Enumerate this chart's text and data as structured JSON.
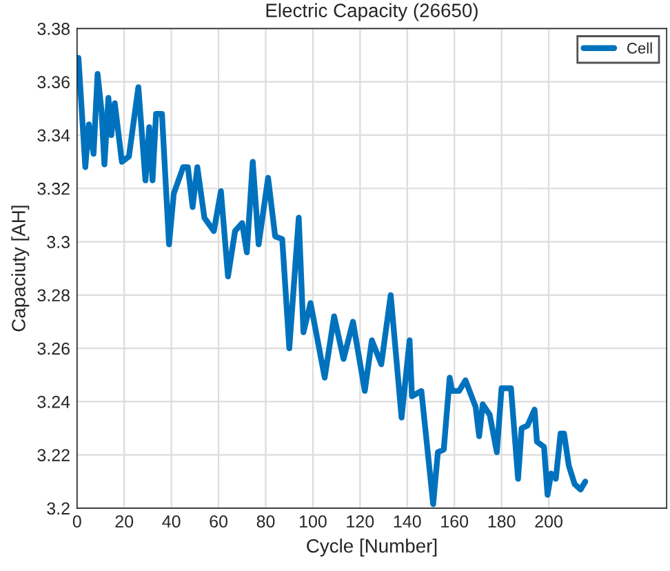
{
  "chart_data": {
    "type": "line",
    "title": "Electric Capacity (26650)",
    "xlabel": "Cycle [Number]",
    "ylabel": "Capaciuty [AH]",
    "series": [
      {
        "name": "Cell",
        "color": "#0072bd",
        "x": [
          0.6,
          3.5,
          5,
          7,
          8.7,
          10.4,
          11.6,
          13.3,
          14.5,
          16,
          19,
          22,
          26,
          29,
          30.6,
          32,
          33.5,
          36,
          39,
          41,
          45,
          47,
          49,
          51,
          54,
          58,
          61,
          64,
          67,
          70,
          72,
          74.5,
          77,
          81,
          84,
          87,
          90,
          94,
          96,
          99,
          105,
          109,
          113,
          117,
          122,
          125,
          129,
          133,
          137.6,
          141,
          142,
          146,
          151,
          153,
          155.5,
          158,
          159,
          162,
          164.7,
          169,
          170.5,
          172,
          175,
          178,
          180,
          184,
          187,
          188.5,
          191,
          194,
          195,
          198,
          199.5,
          201,
          203,
          205,
          206.5,
          208.5,
          211,
          213.5,
          215.5
        ],
        "values": [
          3.369,
          3.328,
          3.344,
          3.333,
          3.363,
          3.349,
          3.329,
          3.354,
          3.34,
          3.352,
          3.33,
          3.332,
          3.358,
          3.323,
          3.343,
          3.323,
          3.348,
          3.348,
          3.299,
          3.318,
          3.328,
          3.328,
          3.313,
          3.328,
          3.309,
          3.304,
          3.319,
          3.287,
          3.304,
          3.307,
          3.296,
          3.33,
          3.299,
          3.324,
          3.302,
          3.301,
          3.26,
          3.309,
          3.266,
          3.277,
          3.249,
          3.272,
          3.256,
          3.27,
          3.244,
          3.263,
          3.254,
          3.28,
          3.234,
          3.263,
          3.242,
          3.244,
          3.2015,
          3.221,
          3.222,
          3.249,
          3.244,
          3.244,
          3.248,
          3.238,
          3.227,
          3.239,
          3.235,
          3.221,
          3.245,
          3.245,
          3.211,
          3.23,
          3.231,
          3.237,
          3.225,
          3.223,
          3.205,
          3.213,
          3.211,
          3.228,
          3.228,
          3.216,
          3.209,
          3.207,
          3.21
        ]
      }
    ],
    "xlim": [
      0,
      250
    ],
    "xticks": [
      0,
      20,
      40,
      60,
      80,
      100,
      120,
      140,
      160,
      180,
      200
    ],
    "ylim": [
      3.2,
      3.38
    ],
    "yticks": [
      3.2,
      3.22,
      3.24,
      3.26,
      3.28,
      3.3,
      3.32,
      3.34,
      3.36,
      3.38
    ],
    "grid": true,
    "legend": "top right",
    "line_style": "solid",
    "marker": "none"
  }
}
